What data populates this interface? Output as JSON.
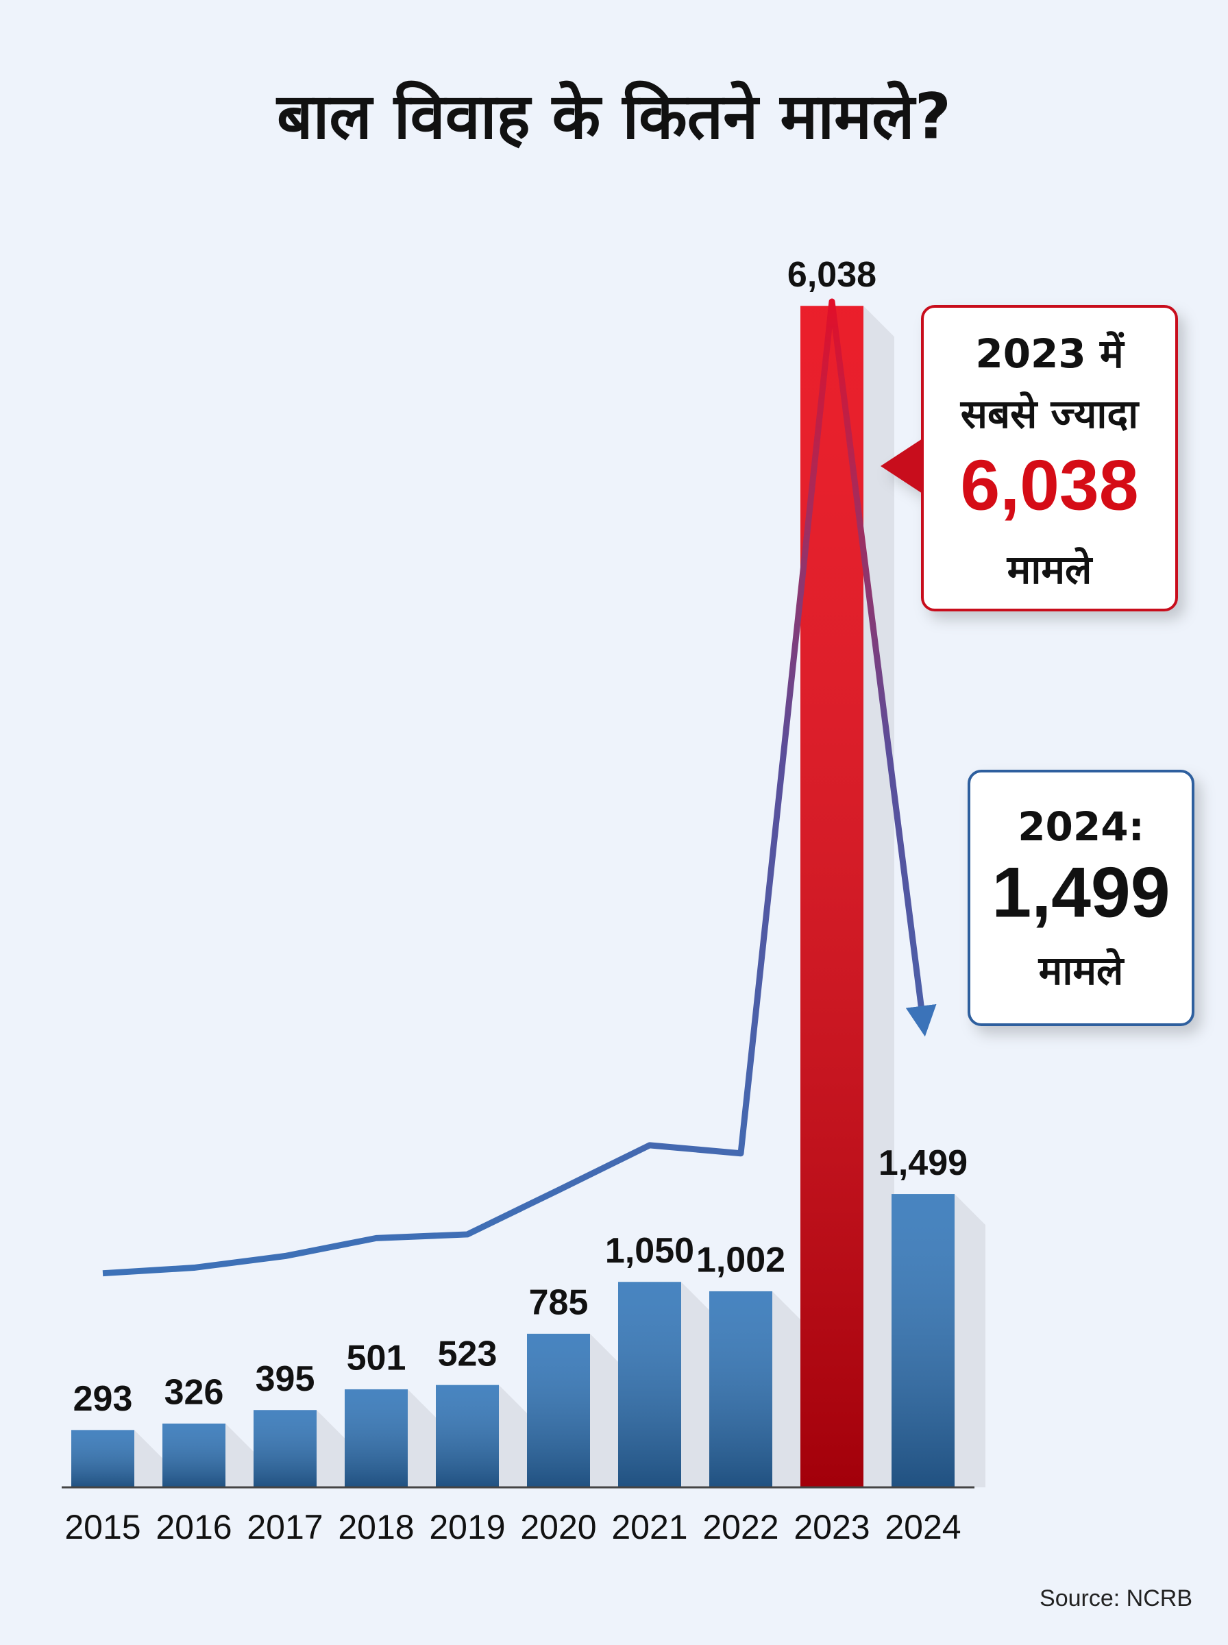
{
  "chart_data": {
    "type": "bar",
    "title": "बाल विवाह के कितने मामले?",
    "categories": [
      "2015",
      "2016",
      "2017",
      "2018",
      "2019",
      "2020",
      "2021",
      "2022",
      "2023",
      "2024"
    ],
    "values": [
      293,
      326,
      395,
      501,
      523,
      785,
      1050,
      1002,
      6038,
      1499
    ],
    "value_labels": [
      "293",
      "326",
      "395",
      "501",
      "523",
      "785",
      "1,050",
      "1,002",
      "6,038",
      "1,499"
    ],
    "colors": [
      "#2f74b8",
      "#2f74b8",
      "#2f74b8",
      "#2f74b8",
      "#2f74b8",
      "#2f74b8",
      "#2f74b8",
      "#2f74b8",
      "#e8000e",
      "#2f74b8"
    ],
    "line_color": "#3b73b9",
    "ylim": [
      0,
      6200
    ],
    "annotations": [
      {
        "lines": [
          "2023 में",
          "सबसे ज्यादा",
          "6,038",
          "मामले"
        ],
        "border": "#c8101e",
        "highlight_color": "#d50c16"
      },
      {
        "lines": [
          "2024:",
          "1,499",
          "मामले"
        ],
        "border": "#2f5f9e",
        "highlight_color": "#111111"
      }
    ],
    "source": "Source: NCRB"
  }
}
